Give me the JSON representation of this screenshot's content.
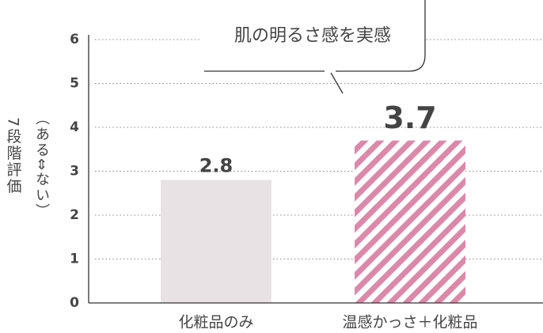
{
  "chart_data": {
    "type": "bar",
    "y_label": "7段階評価",
    "y_label_note": "（ある⇔ない）",
    "annotation": "肌の明るさ感を実感",
    "categories": [
      "化粧品のみ",
      "温感かっさ＋化粧品"
    ],
    "values": [
      2.8,
      3.7
    ],
    "colors": [
      "#e9e2e4",
      "#dc88aa"
    ],
    "patterns": [
      "solid",
      "stripes"
    ],
    "value_label_colors": [
      "#555555",
      "#d0569a"
    ],
    "ylim": [
      0,
      6
    ],
    "yticks": [
      0,
      1,
      2,
      3,
      4,
      5,
      6
    ],
    "grid": true
  }
}
